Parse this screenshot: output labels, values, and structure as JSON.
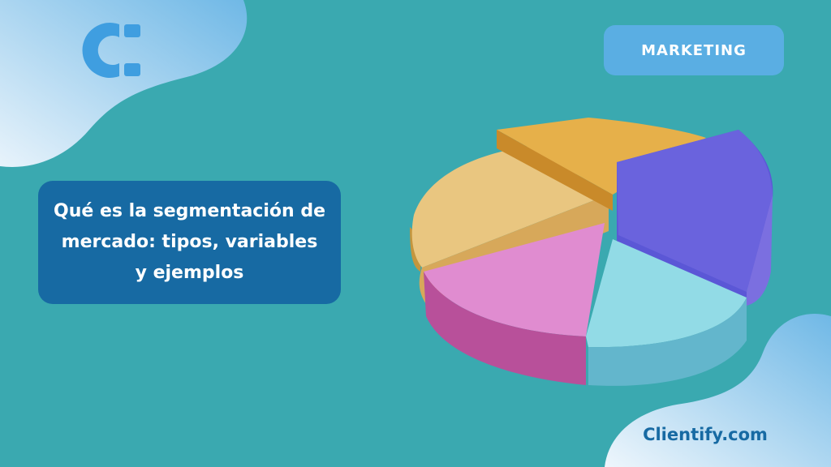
{
  "brand": {
    "logo_icon": "clientify-c-logo-icon",
    "site": "Clientify.com"
  },
  "category_badge": "MARKETING",
  "title": "Qué es la segmentación de mercado: tipos, variables y ejemplos",
  "illustration": {
    "icon": "3d-pie-chart-icon",
    "slice_colors": [
      "#e6b04a",
      "#7b6fe0",
      "#7ccfdd",
      "#d67fc4",
      "#e9c680"
    ]
  },
  "colors": {
    "background": "#3aa9b0",
    "title_box": "#176aa3",
    "badge": "#5aaee3"
  }
}
